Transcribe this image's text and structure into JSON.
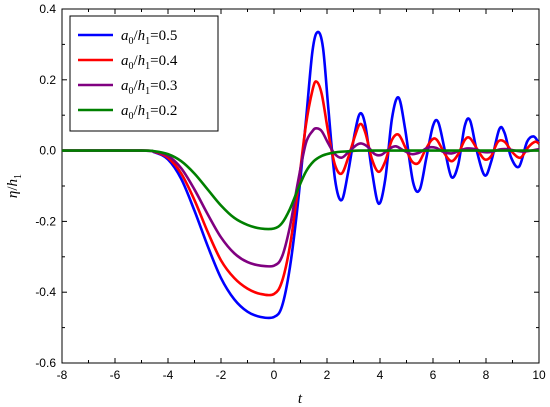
{
  "chart_data": {
    "type": "line",
    "xlabel": "t",
    "ylabel": "η/h₁",
    "xlim": [
      -8,
      10
    ],
    "ylim": [
      -0.6,
      0.4
    ],
    "xticks": [
      -8,
      -6,
      -4,
      -2,
      0,
      2,
      4,
      6,
      8,
      10
    ],
    "yticks": [
      -0.6,
      -0.4,
      -0.2,
      0.0,
      0.2,
      0.4
    ],
    "xtick_labels": [
      "-8",
      "-6",
      "-4",
      "-2",
      "0",
      "2",
      "4",
      "6",
      "8",
      "10"
    ],
    "ytick_labels": [
      "-0.6",
      "-0.4",
      "-0.2",
      "0.0",
      "0.2",
      "0.4"
    ],
    "legend_position": "top-left",
    "grid": false,
    "series": [
      {
        "name": "a0/h1=0.5",
        "legend": {
          "a": "a",
          "a_sub": "0",
          "h": "h",
          "h_sub": "1",
          "eq": "=0.5"
        },
        "color": "#0000ff",
        "points": [
          [
            -8,
            0
          ],
          [
            -5,
            0
          ],
          [
            -4.5,
            -0.005
          ],
          [
            -4,
            -0.025
          ],
          [
            -3.5,
            -0.08
          ],
          [
            -3,
            -0.17
          ],
          [
            -2.5,
            -0.27
          ],
          [
            -2,
            -0.36
          ],
          [
            -1.5,
            -0.42
          ],
          [
            -1,
            -0.455
          ],
          [
            -0.5,
            -0.47
          ],
          [
            0,
            -0.47
          ],
          [
            0.3,
            -0.44
          ],
          [
            0.6,
            -0.33
          ],
          [
            0.9,
            -0.15
          ],
          [
            1.2,
            0.08
          ],
          [
            1.45,
            0.28
          ],
          [
            1.65,
            0.335
          ],
          [
            1.85,
            0.29
          ],
          [
            2.05,
            0.12
          ],
          [
            2.3,
            -0.08
          ],
          [
            2.55,
            -0.14
          ],
          [
            2.8,
            -0.06
          ],
          [
            3.05,
            0.05
          ],
          [
            3.25,
            0.105
          ],
          [
            3.45,
            0.07
          ],
          [
            3.7,
            -0.06
          ],
          [
            3.95,
            -0.15
          ],
          [
            4.2,
            -0.08
          ],
          [
            4.45,
            0.09
          ],
          [
            4.7,
            0.15
          ],
          [
            4.95,
            0.06
          ],
          [
            5.25,
            -0.09
          ],
          [
            5.5,
            -0.11
          ],
          [
            5.75,
            -0.02
          ],
          [
            6.0,
            0.07
          ],
          [
            6.2,
            0.08
          ],
          [
            6.45,
            0.0
          ],
          [
            6.7,
            -0.075
          ],
          [
            6.95,
            -0.04
          ],
          [
            7.2,
            0.07
          ],
          [
            7.4,
            0.085
          ],
          [
            7.65,
            0.0
          ],
          [
            7.95,
            -0.07
          ],
          [
            8.2,
            -0.03
          ],
          [
            8.5,
            0.06
          ],
          [
            8.7,
            0.05
          ],
          [
            8.95,
            -0.02
          ],
          [
            9.25,
            -0.045
          ],
          [
            9.55,
            0.025
          ],
          [
            9.8,
            0.04
          ],
          [
            10,
            0.02
          ]
        ]
      },
      {
        "name": "a0/h1=0.4",
        "legend": {
          "a": "a",
          "a_sub": "0",
          "h": "h",
          "h_sub": "1",
          "eq": "=0.4"
        },
        "color": "#ff0000",
        "points": [
          [
            -8,
            0
          ],
          [
            -5,
            0
          ],
          [
            -4.5,
            -0.004
          ],
          [
            -4,
            -0.02
          ],
          [
            -3.5,
            -0.065
          ],
          [
            -3,
            -0.14
          ],
          [
            -2.5,
            -0.23
          ],
          [
            -2,
            -0.31
          ],
          [
            -1.5,
            -0.36
          ],
          [
            -1,
            -0.39
          ],
          [
            -0.5,
            -0.405
          ],
          [
            0,
            -0.405
          ],
          [
            0.3,
            -0.37
          ],
          [
            0.6,
            -0.27
          ],
          [
            0.9,
            -0.11
          ],
          [
            1.2,
            0.07
          ],
          [
            1.45,
            0.17
          ],
          [
            1.6,
            0.195
          ],
          [
            1.8,
            0.16
          ],
          [
            2.05,
            0.05
          ],
          [
            2.3,
            -0.04
          ],
          [
            2.55,
            -0.065
          ],
          [
            2.8,
            -0.02
          ],
          [
            3.05,
            0.04
          ],
          [
            3.25,
            0.075
          ],
          [
            3.45,
            0.05
          ],
          [
            3.7,
            -0.025
          ],
          [
            3.95,
            -0.06
          ],
          [
            4.2,
            -0.03
          ],
          [
            4.45,
            0.03
          ],
          [
            4.7,
            0.045
          ],
          [
            4.95,
            0.01
          ],
          [
            5.2,
            -0.03
          ],
          [
            5.45,
            -0.035
          ],
          [
            5.7,
            0.0
          ],
          [
            5.95,
            0.03
          ],
          [
            6.15,
            0.03
          ],
          [
            6.45,
            -0.01
          ],
          [
            6.7,
            -0.03
          ],
          [
            6.95,
            -0.01
          ],
          [
            7.2,
            0.03
          ],
          [
            7.4,
            0.035
          ],
          [
            7.7,
            0.0
          ],
          [
            7.95,
            -0.025
          ],
          [
            8.2,
            -0.015
          ],
          [
            8.45,
            0.025
          ],
          [
            8.7,
            0.025
          ],
          [
            9.0,
            -0.005
          ],
          [
            9.3,
            -0.02
          ],
          [
            9.6,
            0.01
          ],
          [
            9.85,
            0.025
          ],
          [
            10,
            0.02
          ]
        ]
      },
      {
        "name": "a0/h1=0.3",
        "legend": {
          "a": "a",
          "a_sub": "0",
          "h": "h",
          "h_sub": "1",
          "eq": "=0.3"
        },
        "color": "#800080",
        "points": [
          [
            -8,
            0
          ],
          [
            -5,
            0
          ],
          [
            -4.5,
            -0.003
          ],
          [
            -4,
            -0.015
          ],
          [
            -3.5,
            -0.05
          ],
          [
            -3,
            -0.11
          ],
          [
            -2.5,
            -0.18
          ],
          [
            -2,
            -0.245
          ],
          [
            -1.5,
            -0.29
          ],
          [
            -1,
            -0.315
          ],
          [
            -0.5,
            -0.325
          ],
          [
            0,
            -0.325
          ],
          [
            0.3,
            -0.3
          ],
          [
            0.6,
            -0.215
          ],
          [
            0.9,
            -0.09
          ],
          [
            1.2,
            0.02
          ],
          [
            1.45,
            0.055
          ],
          [
            1.6,
            0.063
          ],
          [
            1.8,
            0.055
          ],
          [
            2.05,
            0.02
          ],
          [
            2.3,
            -0.01
          ],
          [
            2.55,
            -0.02
          ],
          [
            2.8,
            -0.005
          ],
          [
            3.1,
            0.015
          ],
          [
            3.3,
            0.02
          ],
          [
            3.55,
            0.01
          ],
          [
            3.8,
            -0.01
          ],
          [
            4.05,
            -0.012
          ],
          [
            4.35,
            0.005
          ],
          [
            4.6,
            0.012
          ],
          [
            4.9,
            0.0
          ],
          [
            5.2,
            -0.01
          ],
          [
            5.5,
            -0.005
          ],
          [
            5.8,
            0.008
          ],
          [
            6.1,
            0.008
          ],
          [
            6.4,
            -0.004
          ],
          [
            6.7,
            -0.008
          ],
          [
            7.0,
            0.0
          ],
          [
            7.3,
            0.006
          ],
          [
            7.6,
            0.004
          ],
          [
            7.9,
            -0.004
          ],
          [
            8.2,
            -0.004
          ],
          [
            8.5,
            0.003
          ],
          [
            8.8,
            0.004
          ],
          [
            9.1,
            0.0
          ],
          [
            9.4,
            -0.003
          ],
          [
            9.7,
            0.0
          ],
          [
            10,
            0.004
          ]
        ]
      },
      {
        "name": "a0/h1=0.2",
        "legend": {
          "a": "a",
          "a_sub": "0",
          "h": "h",
          "h_sub": "1",
          "eq": "=0.2"
        },
        "color": "#008000",
        "points": [
          [
            -8,
            0
          ],
          [
            -5,
            0
          ],
          [
            -4.5,
            -0.002
          ],
          [
            -4,
            -0.01
          ],
          [
            -3.5,
            -0.03
          ],
          [
            -3,
            -0.065
          ],
          [
            -2.5,
            -0.11
          ],
          [
            -2,
            -0.155
          ],
          [
            -1.5,
            -0.19
          ],
          [
            -1,
            -0.21
          ],
          [
            -0.5,
            -0.22
          ],
          [
            0,
            -0.22
          ],
          [
            0.3,
            -0.205
          ],
          [
            0.6,
            -0.165
          ],
          [
            0.9,
            -0.11
          ],
          [
            1.2,
            -0.06
          ],
          [
            1.5,
            -0.03
          ],
          [
            1.8,
            -0.015
          ],
          [
            2.1,
            -0.008
          ],
          [
            2.4,
            -0.004
          ],
          [
            2.8,
            -0.002
          ],
          [
            3.2,
            0.0
          ],
          [
            4,
            0.0
          ],
          [
            6,
            0.0
          ],
          [
            8,
            0.0
          ],
          [
            10,
            0.0
          ]
        ]
      }
    ]
  }
}
